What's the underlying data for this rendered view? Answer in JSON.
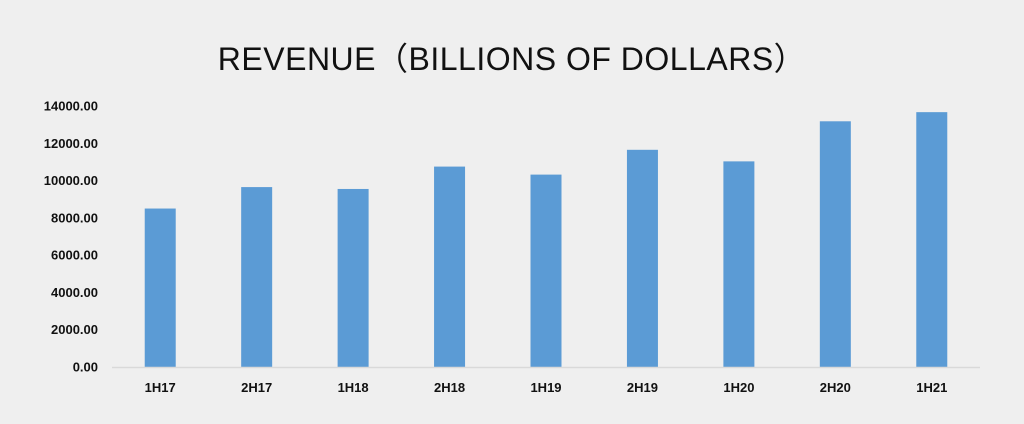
{
  "chart_data": {
    "type": "bar",
    "title": "REVENUE（BILLIONS OF DOLLARS）",
    "xlabel": "",
    "ylabel": "",
    "categories": [
      "1H17",
      "2H17",
      "1H18",
      "2H18",
      "1H19",
      "2H19",
      "1H20",
      "2H20",
      "1H21"
    ],
    "series": [
      {
        "values": [
          8500,
          9650,
          9550,
          10750,
          10320,
          11650,
          11030,
          13180,
          13670
        ]
      }
    ],
    "ylim": [
      0,
      14000
    ],
    "yticks": [
      "0.00",
      "2000.00",
      "4000.00",
      "6000.00",
      "8000.00",
      "10000.00",
      "12000.00",
      "14000.00"
    ],
    "grid": false,
    "legend": "none",
    "bar_color": "#5b9bd5",
    "axis_color": "#d9d9d9",
    "background": "#efefef"
  }
}
